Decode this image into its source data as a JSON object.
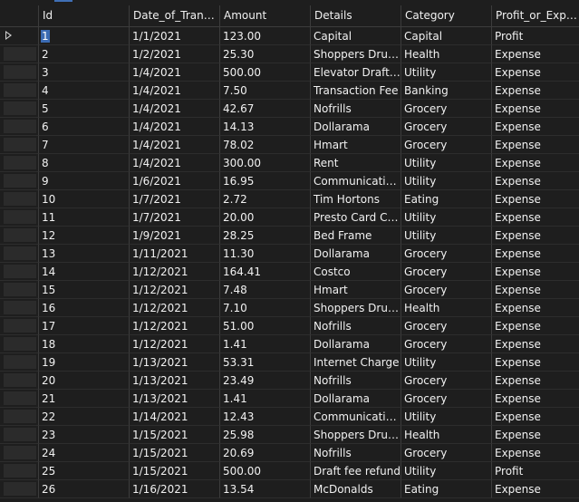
{
  "columns": [
    "Id",
    "Date_of_Transa...",
    "Amount",
    "Details",
    "Category",
    "Profit_or_Expe..."
  ],
  "rows": [
    [
      "1",
      "1/1/2021",
      "123.00",
      "Capital",
      "Capital",
      "Profit"
    ],
    [
      "2",
      "1/2/2021",
      "25.30",
      "Shoppers Drug ...",
      "Health",
      "Expense"
    ],
    [
      "3",
      "1/4/2021",
      "500.00",
      "Elevator Draft Fee",
      "Utility",
      "Expense"
    ],
    [
      "4",
      "1/4/2021",
      "7.50",
      "Transaction Fee",
      "Banking",
      "Expense"
    ],
    [
      "5",
      "1/4/2021",
      "42.67",
      "Nofrills",
      "Grocery",
      "Expense"
    ],
    [
      "6",
      "1/4/2021",
      "14.13",
      "Dollarama",
      "Grocery",
      "Expense"
    ],
    [
      "7",
      "1/4/2021",
      "78.02",
      "Hmart",
      "Grocery",
      "Expense"
    ],
    [
      "8",
      "1/4/2021",
      "300.00",
      "Rent",
      "Utility",
      "Expense"
    ],
    [
      "9",
      "1/6/2021",
      "16.95",
      "Communicatio...",
      "Utility",
      "Expense"
    ],
    [
      "10",
      "1/7/2021",
      "2.72",
      "Tim Hortons",
      "Eating",
      "Expense"
    ],
    [
      "11",
      "1/7/2021",
      "20.00",
      "Presto Card Ch...",
      "Utility",
      "Expense"
    ],
    [
      "12",
      "1/9/2021",
      "28.25",
      "Bed Frame",
      "Utility",
      "Expense"
    ],
    [
      "13",
      "1/11/2021",
      "11.30",
      "Dollarama",
      "Grocery",
      "Expense"
    ],
    [
      "14",
      "1/12/2021",
      "164.41",
      "Costco",
      "Grocery",
      "Expense"
    ],
    [
      "15",
      "1/12/2021",
      "7.48",
      "Hmart",
      "Grocery",
      "Expense"
    ],
    [
      "16",
      "1/12/2021",
      "7.10",
      "Shoppers Drug ...",
      "Health",
      "Expense"
    ],
    [
      "17",
      "1/12/2021",
      "51.00",
      "Nofrills",
      "Grocery",
      "Expense"
    ],
    [
      "18",
      "1/12/2021",
      "1.41",
      "Dollarama",
      "Grocery",
      "Expense"
    ],
    [
      "19",
      "1/13/2021",
      "53.31",
      "Internet Charge",
      "Utility",
      "Expense"
    ],
    [
      "20",
      "1/13/2021",
      "23.49",
      "Nofrills",
      "Grocery",
      "Expense"
    ],
    [
      "21",
      "1/13/2021",
      "1.41",
      "Dollarama",
      "Grocery",
      "Expense"
    ],
    [
      "22",
      "1/14/2021",
      "12.43",
      "Communicatio...",
      "Utility",
      "Expense"
    ],
    [
      "23",
      "1/15/2021",
      "25.98",
      "Shoppers Drug ...",
      "Health",
      "Expense"
    ],
    [
      "24",
      "1/15/2021",
      "20.69",
      "Nofrills",
      "Grocery",
      "Expense"
    ],
    [
      "25",
      "1/15/2021",
      "500.00",
      "Draft fee refund",
      "Utility",
      "Profit"
    ],
    [
      "26",
      "1/16/2021",
      "13.54",
      "McDonalds",
      "Eating",
      "Expense"
    ]
  ],
  "current_row_icon": "current-row-arrow-icon",
  "selection_color": "#3b6bb3"
}
